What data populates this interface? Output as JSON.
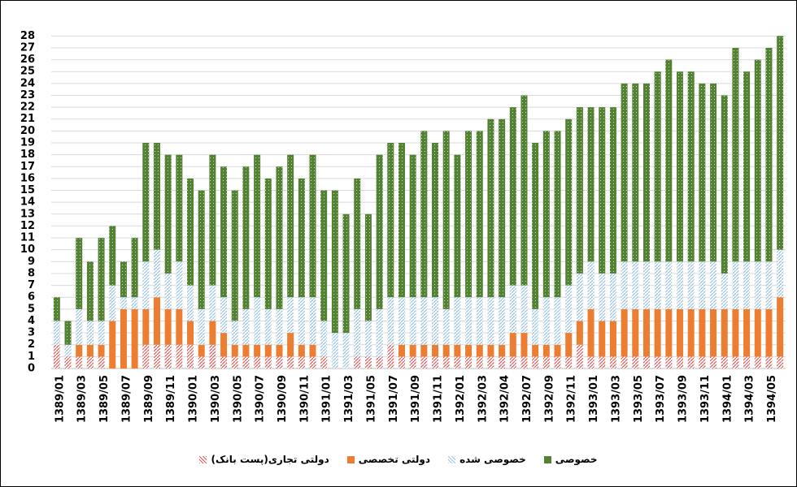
{
  "chart_data": {
    "type": "stacked_bar",
    "categories": [
      "1389/01",
      null,
      "1389/03",
      null,
      "1389/05",
      null,
      "1389/07",
      null,
      "1389/09",
      null,
      "1389/11",
      null,
      "1390/01",
      null,
      "1390/03",
      null,
      "1390/05",
      null,
      "1390/07",
      null,
      "1390/09",
      null,
      "1390/11",
      null,
      "1391/01",
      null,
      "1391/03",
      null,
      "1391/05",
      null,
      "1391/07",
      null,
      "1391/09",
      null,
      "1391/11",
      null,
      "1392/01",
      null,
      "1392/03",
      null,
      "1392/04",
      null,
      "1392/07",
      null,
      "1392/09",
      null,
      "1392/11",
      null,
      "1393/01",
      null,
      "1393/03",
      null,
      "1393/05",
      null,
      "1393/07",
      null,
      "1393/09",
      null,
      "1393/11",
      null,
      "1394/01",
      null,
      "1394/03",
      null,
      "1394/05",
      null
    ],
    "series": [
      {
        "name": "دولتی تجاری(پست بانک)",
        "color": "#e15759",
        "values": [
          2,
          1,
          1,
          1,
          1,
          0,
          0,
          0,
          2,
          2,
          2,
          2,
          2,
          1,
          2,
          1,
          1,
          1,
          1,
          1,
          1,
          1,
          1,
          1,
          1,
          0,
          0,
          1,
          1,
          1,
          2,
          1,
          1,
          1,
          1,
          1,
          1,
          1,
          1,
          1,
          1,
          1,
          1,
          1,
          1,
          1,
          1,
          2,
          1,
          1,
          1,
          1,
          1,
          1,
          1,
          1,
          1,
          1,
          1,
          1,
          1,
          1,
          1,
          1,
          1,
          1
        ]
      },
      {
        "name": "دولتی تخصصی",
        "color": "#ed7d31",
        "values": [
          0,
          0,
          1,
          1,
          1,
          4,
          5,
          5,
          3,
          4,
          3,
          3,
          2,
          1,
          2,
          2,
          1,
          1,
          1,
          1,
          1,
          2,
          1,
          1,
          0,
          0,
          0,
          0,
          0,
          0,
          0,
          1,
          1,
          1,
          1,
          1,
          1,
          1,
          1,
          1,
          1,
          2,
          2,
          1,
          1,
          1,
          2,
          2,
          4,
          3,
          3,
          4,
          4,
          4,
          4,
          4,
          4,
          4,
          4,
          4,
          4,
          4,
          4,
          4,
          4,
          5
        ]
      },
      {
        "name": "خصوصی شده",
        "color": "#9dc3e6",
        "values": [
          2,
          1,
          3,
          2,
          2,
          3,
          1,
          1,
          4,
          4,
          3,
          4,
          3,
          3,
          3,
          3,
          2,
          3,
          4,
          3,
          3,
          3,
          4,
          4,
          3,
          3,
          3,
          4,
          3,
          4,
          4,
          4,
          4,
          4,
          4,
          3,
          4,
          4,
          4,
          4,
          4,
          4,
          4,
          3,
          4,
          4,
          4,
          4,
          4,
          4,
          4,
          4,
          4,
          4,
          4,
          4,
          4,
          4,
          4,
          4,
          3,
          4,
          4,
          4,
          4,
          4
        ]
      },
      {
        "name": "خصوصی",
        "color": "#548235",
        "values": [
          2,
          2,
          6,
          5,
          7,
          5,
          3,
          5,
          10,
          9,
          10,
          9,
          9,
          10,
          11,
          11,
          11,
          12,
          12,
          11,
          12,
          12,
          10,
          12,
          11,
          12,
          10,
          11,
          9,
          13,
          13,
          13,
          12,
          14,
          13,
          15,
          12,
          14,
          14,
          15,
          15,
          15,
          16,
          14,
          14,
          14,
          14,
          14,
          13,
          14,
          14,
          15,
          15,
          15,
          16,
          17,
          16,
          16,
          15,
          15,
          15,
          18,
          16,
          17,
          18,
          18
        ]
      }
    ],
    "ylim": [
      0,
      28.5
    ],
    "yticks": [
      0,
      1,
      2,
      3,
      4,
      5,
      6,
      7,
      8,
      9,
      10,
      11,
      12,
      13,
      14,
      15,
      16,
      17,
      18,
      19,
      20,
      21,
      22,
      23,
      24,
      25,
      26,
      27,
      28
    ],
    "grid": true
  }
}
